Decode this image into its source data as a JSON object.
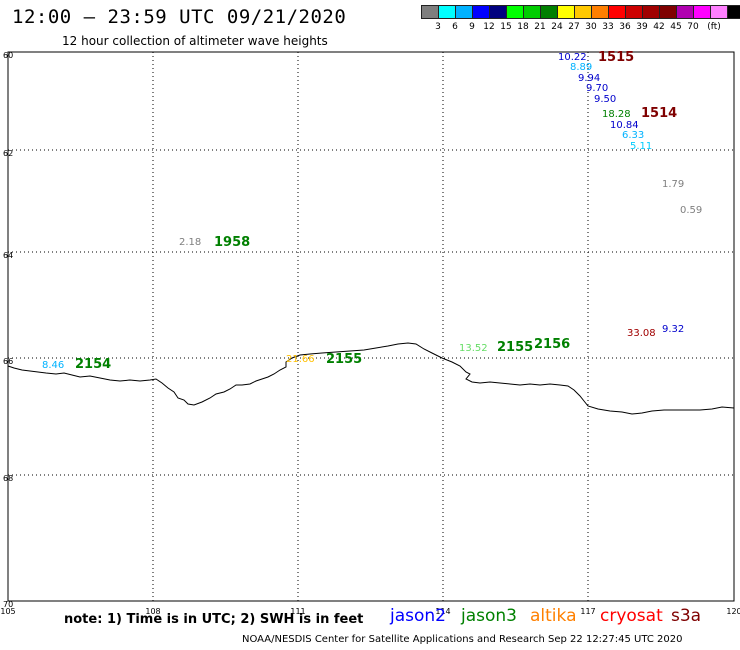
{
  "header": {
    "title": "12:00 – 23:59 UTC 09/21/2020",
    "subtitle": "12 hour collection of altimeter wave heights"
  },
  "color_scale": {
    "colors": [
      "#7f7f7f",
      "#00ffff",
      "#00b2ff",
      "#0000ff",
      "#00007f",
      "#00ff00",
      "#00cc00",
      "#008000",
      "#ffff00",
      "#ffc800",
      "#ff7f00",
      "#ff0000",
      "#cc0000",
      "#a00000",
      "#7f0000",
      "#b000b0",
      "#ff00ff",
      "#ff80ff",
      "#000000"
    ],
    "labels": [
      "3",
      "6",
      "9",
      "12",
      "15",
      "18",
      "21",
      "24",
      "27",
      "30",
      "33",
      "36",
      "39",
      "42",
      "45",
      "70",
      "(ft)"
    ]
  },
  "axes": {
    "lat_labels": [
      "60",
      "62",
      "64",
      "66",
      "68",
      "70"
    ],
    "lon_labels": [
      "105",
      "108",
      "111",
      "114",
      "117",
      "120"
    ]
  },
  "observations": [
    {
      "text": "10.22",
      "color": "#0000cc"
    },
    {
      "text": "1515",
      "color": "#7f0000",
      "kind": "time"
    },
    {
      "text": "8.89",
      "color": "#00b2ff"
    },
    {
      "text": "9.94",
      "color": "#0000cc"
    },
    {
      "text": "9.70",
      "color": "#0000cc"
    },
    {
      "text": "9.50",
      "color": "#0000cc"
    },
    {
      "text": "18.28",
      "color": "#008000"
    },
    {
      "text": "1514",
      "color": "#7f0000",
      "kind": "time"
    },
    {
      "text": "10.84",
      "color": "#0000cc"
    },
    {
      "text": "6.33",
      "color": "#00b2ff"
    },
    {
      "text": "5.11",
      "color": "#00ccff"
    },
    {
      "text": "1.79",
      "color": "#7f7f7f"
    },
    {
      "text": "0.59",
      "color": "#7f7f7f"
    },
    {
      "text": "2.18",
      "color": "#7f7f7f"
    },
    {
      "text": "1958",
      "color": "#008000",
      "kind": "time"
    },
    {
      "text": "33.08",
      "color": "#a00000"
    },
    {
      "text": "9.32",
      "color": "#0000cc"
    },
    {
      "text": "13.52",
      "color": "#66dd66"
    },
    {
      "text": "2155",
      "color": "#008000",
      "kind": "time"
    },
    {
      "text": "2156",
      "color": "#008000",
      "kind": "time"
    },
    {
      "text": "8.46",
      "color": "#00b2ff"
    },
    {
      "text": "2154",
      "color": "#008000",
      "kind": "time"
    },
    {
      "text": "21.66",
      "color": "#ffc000"
    },
    {
      "text": "2155",
      "color": "#008000",
      "kind": "time"
    }
  ],
  "footer": {
    "note": "note: 1) Time is in UTC; 2) SWH is in feet",
    "satellites": [
      {
        "name": "jason2",
        "color": "#0000ff"
      },
      {
        "name": "jason3",
        "color": "#008000"
      },
      {
        "name": "altika",
        "color": "#ff8000"
      },
      {
        "name": "cryosat",
        "color": "#ff0000"
      },
      {
        "name": "s3a",
        "color": "#7f0000"
      }
    ],
    "credit": "NOAA/NESDIS Center for Satellite Applications and Research    Sep 22 12:27:45 UTC 2020"
  }
}
